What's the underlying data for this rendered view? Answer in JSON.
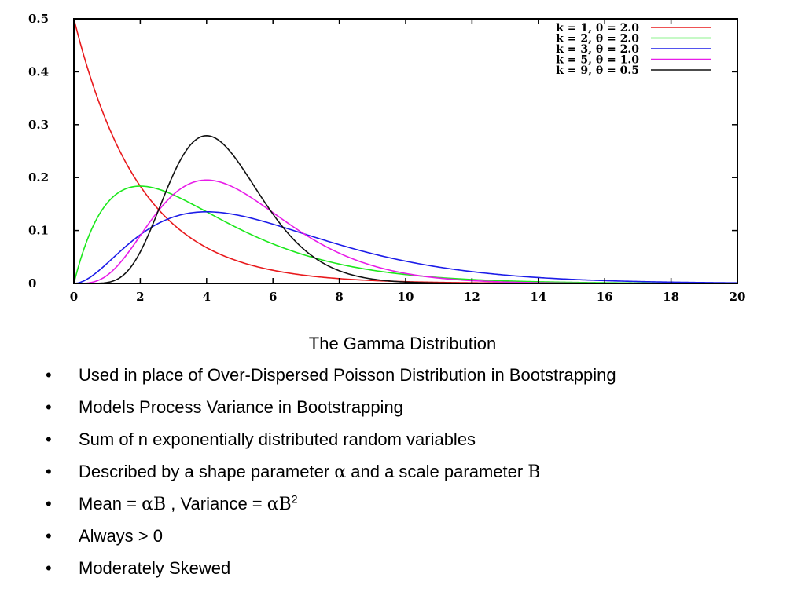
{
  "chart_data": {
    "type": "line",
    "title": "",
    "xlabel": "",
    "ylabel": "",
    "xlim": [
      0,
      20
    ],
    "ylim": [
      0,
      0.5
    ],
    "x_ticks": [
      "0",
      "2",
      "4",
      "6",
      "8",
      "10",
      "12",
      "14",
      "16",
      "18",
      "20"
    ],
    "y_ticks": [
      "0",
      "0.1",
      "0.2",
      "0.3",
      "0.4",
      "0.5"
    ],
    "grid": false,
    "legend_position": "top-right",
    "series": [
      {
        "name": "k = 1, θ = 2.0",
        "k": 1,
        "theta": 2.0,
        "color": "#e8191c",
        "x": [
          0,
          1,
          2,
          3,
          4,
          5,
          6,
          8,
          10,
          15,
          20
        ],
        "values": [
          0.5,
          0.303,
          0.184,
          0.112,
          0.068,
          0.041,
          0.025,
          0.009,
          0.003,
          0.0003,
          0.0
        ]
      },
      {
        "name": "k = 2, θ = 2.0",
        "k": 2,
        "theta": 2.0,
        "color": "#1ce81c",
        "x": [
          0,
          1,
          2,
          3,
          4,
          5,
          6,
          8,
          10,
          15,
          20
        ],
        "values": [
          0,
          0.152,
          0.184,
          0.167,
          0.135,
          0.103,
          0.075,
          0.037,
          0.017,
          0.002,
          0.0
        ]
      },
      {
        "name": "k = 3, θ = 2.0",
        "k": 3,
        "theta": 2.0,
        "color": "#1c1ce8",
        "x": [
          0,
          1,
          2,
          3,
          4,
          5,
          6,
          8,
          10,
          15,
          20
        ],
        "values": [
          0,
          0.038,
          0.092,
          0.126,
          0.135,
          0.128,
          0.112,
          0.073,
          0.042,
          0.007,
          0.001
        ]
      },
      {
        "name": "k = 5, θ = 1.0",
        "k": 5,
        "theta": 1.0,
        "color": "#e81ce8",
        "x": [
          0,
          1,
          2,
          3,
          4,
          5,
          6,
          8,
          10,
          15,
          20
        ],
        "values": [
          0,
          0.015,
          0.09,
          0.168,
          0.195,
          0.175,
          0.134,
          0.057,
          0.019,
          0.0007,
          0.0
        ]
      },
      {
        "name": "k = 9, θ = 0.5",
        "k": 9,
        "theta": 0.5,
        "color": "#111111",
        "x": [
          0,
          1,
          2,
          3,
          4,
          5,
          6,
          8,
          10,
          15,
          20
        ],
        "values": [
          0,
          0.001,
          0.06,
          0.206,
          0.279,
          0.219,
          0.12,
          0.018,
          0.002,
          0.0,
          0.0
        ]
      }
    ]
  },
  "slide": {
    "caption": "The Gamma Distribution",
    "bullet_char": "•",
    "bullets": {
      "b1": "Used in place of Over-Dispersed Poisson Distribution in Bootstrapping",
      "b2": "Models Process Variance in Bootstrapping",
      "b3": "Sum of n exponentially distributed random variables",
      "b4_a": "Described by a shape parameter ",
      "b4_alpha": "α",
      "b4_b": " and a scale parameter ",
      "b4_beta": "Β",
      "b5_a": "Mean = ",
      "b5_alphabeta": "αΒ",
      "b5_b": " , Variance = ",
      "b5_alphabeta2": "αΒ",
      "b5_sup": "2",
      "b6": "Always > 0",
      "b7": "Moderately Skewed"
    }
  }
}
